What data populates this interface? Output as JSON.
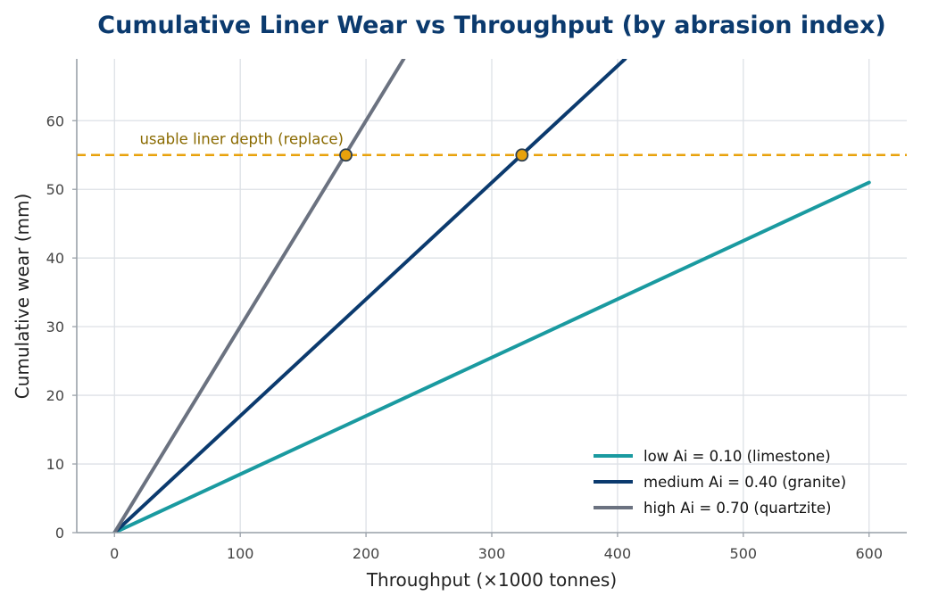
{
  "chart_data": {
    "type": "line",
    "title": "Cumulative Liner Wear vs Throughput (by abrasion index)",
    "xlabel": "Throughput  (×1000 tonnes)",
    "ylabel": "Cumulative wear  (mm)",
    "xlim": [
      -30,
      630
    ],
    "ylim": [
      0,
      69
    ],
    "xticks": [
      0,
      100,
      200,
      300,
      400,
      500,
      600
    ],
    "yticks": [
      0,
      10,
      20,
      30,
      40,
      50,
      60
    ],
    "grid": true,
    "legend_position": "lower-right",
    "series": [
      {
        "name": "low  Ai = 0.10 (limestone)",
        "color": "#1a9aa0",
        "x": [
          0,
          600
        ],
        "y": [
          0,
          51
        ]
      },
      {
        "name": "medium  Ai = 0.40 (granite)",
        "color": "#0b3a6e",
        "x": [
          0,
          406
        ],
        "y": [
          0,
          69
        ]
      },
      {
        "name": "high  Ai = 0.70 (quartzite)",
        "color": "#6b7280",
        "x": [
          0,
          230
        ],
        "y": [
          0,
          69
        ]
      }
    ],
    "threshold": {
      "y": 55,
      "label": "usable liner depth (replace)",
      "color": "#e8a20c",
      "label_color": "#8a6a00"
    },
    "intersections": [
      {
        "x": 184,
        "y": 55
      },
      {
        "x": 324,
        "y": 55
      }
    ],
    "colors": {
      "title": "#0b3a6e",
      "grid": "#dde1e6",
      "axis": "#9aa1a9"
    }
  }
}
